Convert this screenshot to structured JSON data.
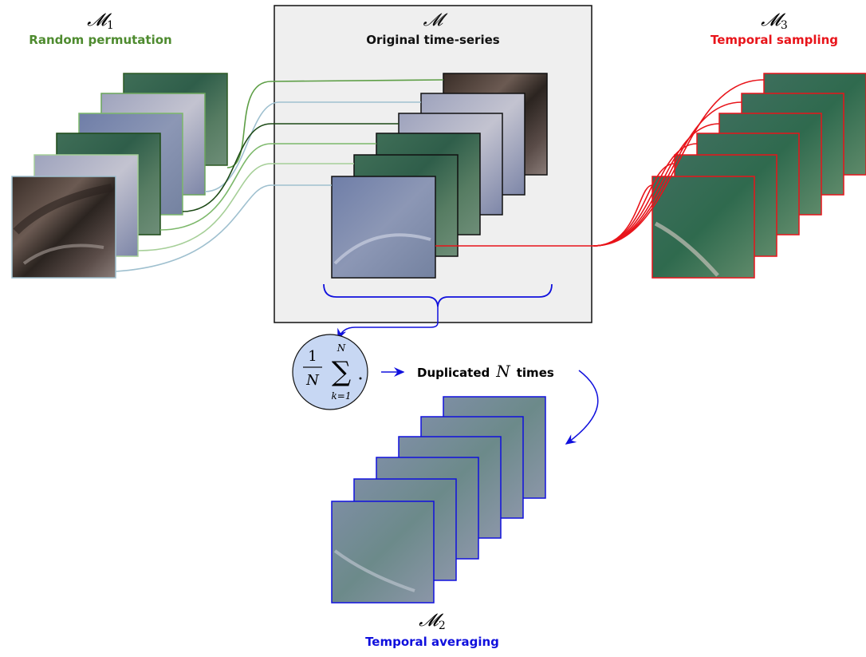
{
  "colors": {
    "m1": "#4e8b2f",
    "m": "#111111",
    "m3": "#e8141a",
    "m2": "#1010dd",
    "m1_line_light": "#7cb86a",
    "m1_line_dark": "#1d4a16",
    "m1_line_blue": "#9fc0cf",
    "sum_fill": "#c7d7f3",
    "box_fill": "#efefef"
  },
  "m1": {
    "symbol": "𝓜",
    "subscript": "1",
    "label": "Random permutation"
  },
  "m": {
    "symbol": "𝓜",
    "label": "Original time-series"
  },
  "m3": {
    "symbol": "𝓜",
    "subscript": "3",
    "label": "Temporal sampling"
  },
  "m2": {
    "symbol": "𝓜",
    "subscript": "2",
    "label": "Temporal averaging"
  },
  "formula": {
    "numerator": "1",
    "denominator": "N",
    "sum_upper": "N",
    "sum_lower": "k=1",
    "sum_sign": "∑"
  },
  "duplicated": {
    "prefix": "Duplicated",
    "var": "N",
    "suffix": "times"
  },
  "icons": [
    "satellite-image-tile",
    "arrow-icon",
    "brace-icon"
  ]
}
